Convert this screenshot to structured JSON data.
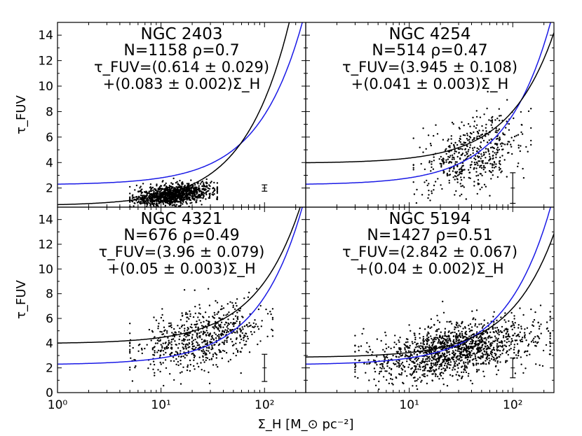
{
  "chart_data": {
    "type": "scatter",
    "layout": "2x2",
    "x_axis": {
      "label": "Σ_H [M_⊙ pc⁻²]",
      "scale": "log",
      "range": [
        1,
        250
      ],
      "ticks": [
        1,
        10,
        100
      ],
      "tick_labels_left": [
        "10⁰",
        "10¹",
        "10²"
      ],
      "tick_labels_right": [
        "10¹",
        "10²"
      ]
    },
    "y_axis": {
      "label": "τ_FUV",
      "range": [
        0.5,
        15
      ],
      "ticks_top_row": [
        2,
        4,
        6,
        8,
        10,
        12,
        14
      ],
      "ticks_bottom_row": [
        0,
        2,
        4,
        6,
        8,
        10,
        12,
        14
      ]
    },
    "colors": {
      "black_fit": "#000000",
      "blue_fit": "#1a1ae6",
      "points": "#000000"
    },
    "panels": [
      {
        "galaxy": "NGC 2403",
        "stats": "N=1158 ρ=0.7",
        "fit_line1": "τ_FUV=(0.614 ± 0.029)",
        "fit_line2": "+(0.083 ± 0.002)Σ_H",
        "N": 1158,
        "rho": 0.7,
        "black_fit": {
          "intercept": 0.614,
          "slope": 0.083
        },
        "blue_curve": {
          "a": 2.25,
          "b": 0.055
        },
        "scatter": {
          "x_min": 5,
          "x_max": 35,
          "y_center": 1.4,
          "y_spread": 0.4,
          "trend": 0.9
        },
        "error_bar": {
          "x": 100,
          "y": 2.0,
          "err": 0.25
        }
      },
      {
        "galaxy": "NGC 4254",
        "stats": "N=514 ρ=0.47",
        "fit_line1": "τ_FUV=(3.945 ± 0.108)",
        "fit_line2": "+(0.041 ± 0.003)Σ_H",
        "N": 514,
        "rho": 0.47,
        "black_fit": {
          "intercept": 3.945,
          "slope": 0.041
        },
        "blue_curve": {
          "a": 2.25,
          "b": 0.055
        },
        "scatter": {
          "x_min": 11,
          "x_max": 150,
          "y_center": 4.4,
          "y_spread": 1.4,
          "trend": 2.5
        },
        "error_bar": {
          "x": 100,
          "y": 2.0,
          "err": 1.2
        }
      },
      {
        "galaxy": "NGC 4321",
        "stats": "N=676 ρ=0.49",
        "fit_line1": "τ_FUV=(3.96 ± 0.079)",
        "fit_line2": "+(0.05 ± 0.003)Σ_H",
        "N": 676,
        "rho": 0.49,
        "black_fit": {
          "intercept": 3.96,
          "slope": 0.05
        },
        "blue_curve": {
          "a": 2.25,
          "b": 0.055
        },
        "scatter": {
          "x_min": 5,
          "x_max": 120,
          "y_center": 4.2,
          "y_spread": 1.2,
          "trend": 2.6
        },
        "error_bar": {
          "x": 100,
          "y": 2.0,
          "err": 1.1
        }
      },
      {
        "galaxy": "NGC 5194",
        "stats": "N=1427 ρ=0.51",
        "fit_line1": "τ_FUV=(2.842 ± 0.067)",
        "fit_line2": "+(0.04 ± 0.002)Σ_H",
        "N": 1427,
        "rho": 0.51,
        "black_fit": {
          "intercept": 2.842,
          "slope": 0.04
        },
        "blue_curve": {
          "a": 2.25,
          "b": 0.055
        },
        "scatter": {
          "x_min": 3,
          "x_max": 230,
          "y_center": 3.2,
          "y_spread": 1.1,
          "trend": 2.4
        },
        "error_bar": {
          "x": 100,
          "y": 2.0,
          "err": 0.8
        }
      }
    ]
  }
}
